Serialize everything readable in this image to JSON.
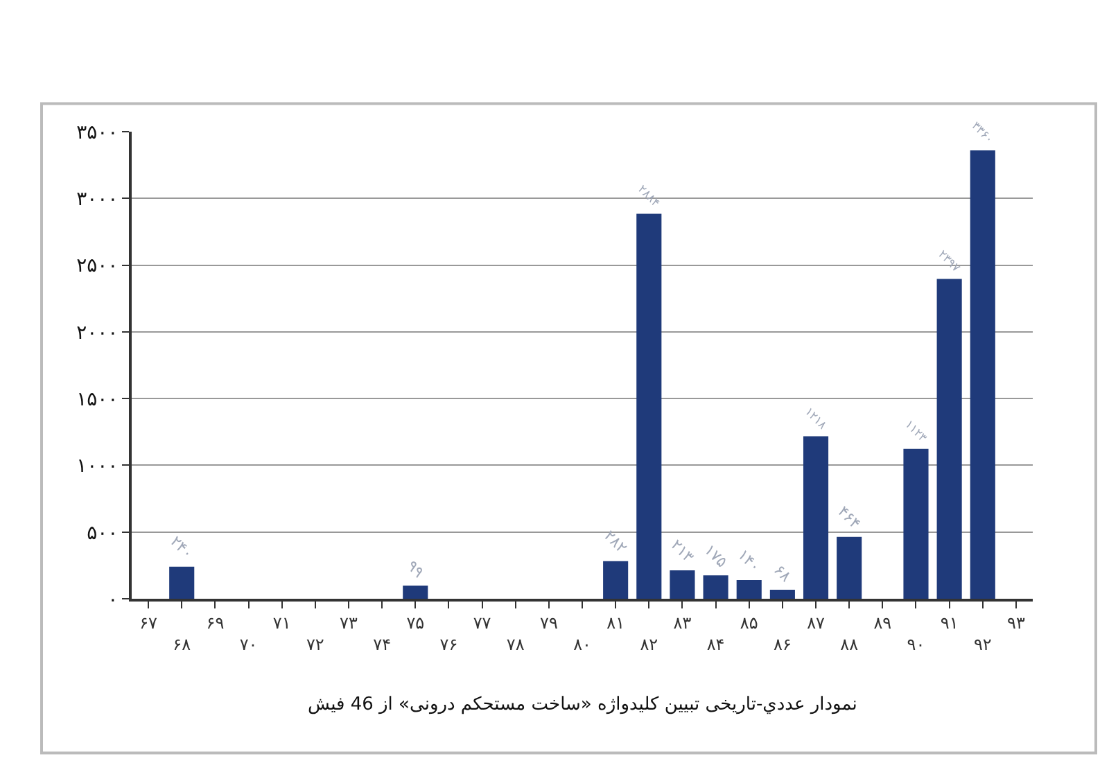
{
  "chart_data": {
    "type": "bar",
    "title": "نمودار عددي-تاریخی تبیین کلیدواژه «ساخت مستحکم درونی» از 46 فیش",
    "categories": [
      "۶۷",
      "۶۸",
      "۶۹",
      "۷۰",
      "۷۱",
      "۷۲",
      "۷۳",
      "۷۴",
      "۷۵",
      "۷۶",
      "۷۷",
      "۷۸",
      "۷۹",
      "۸۰",
      "۸۱",
      "۸۲",
      "۸۳",
      "۸۴",
      "۸۵",
      "۸۶",
      "۸۷",
      "۸۸",
      "۸۹",
      "۹۰",
      "۹۱",
      "۹۲",
      "۹۳"
    ],
    "values": [
      0,
      240,
      0,
      0,
      0,
      0,
      0,
      0,
      99,
      0,
      0,
      0,
      0,
      0,
      282,
      2884,
      213,
      175,
      140,
      68,
      1218,
      464,
      0,
      1123,
      2397,
      3360,
      0
    ],
    "value_labels": [
      null,
      "۲۴۰",
      null,
      null,
      null,
      null,
      null,
      null,
      "۹۹",
      null,
      null,
      null,
      null,
      null,
      "۲۸۲",
      "۲۸۸۴",
      "۲۱۳",
      "۱۷۵",
      "۱۴۰",
      "۶۸",
      "۱۲۱۸",
      "۴۶۴",
      null,
      "۱۱۲۳",
      "۲۳۹۷",
      "۳۳۶۰",
      null
    ],
    "color": "#1f3a7a",
    "ylim": [
      0,
      3500
    ],
    "yticks": [
      {
        "value": 0,
        "label": "۰"
      },
      {
        "value": 500,
        "label": "۵۰۰"
      },
      {
        "value": 1000,
        "label": "۱۰۰۰"
      },
      {
        "value": 1500,
        "label": "۱۵۰۰"
      },
      {
        "value": 2000,
        "label": "۲۰۰۰"
      },
      {
        "value": 2500,
        "label": "۲۵۰۰"
      },
      {
        "value": 3000,
        "label": "۳۰۰۰"
      },
      {
        "value": 3500,
        "label": "۳۵۰۰"
      }
    ],
    "grid": "y",
    "legend": false
  }
}
